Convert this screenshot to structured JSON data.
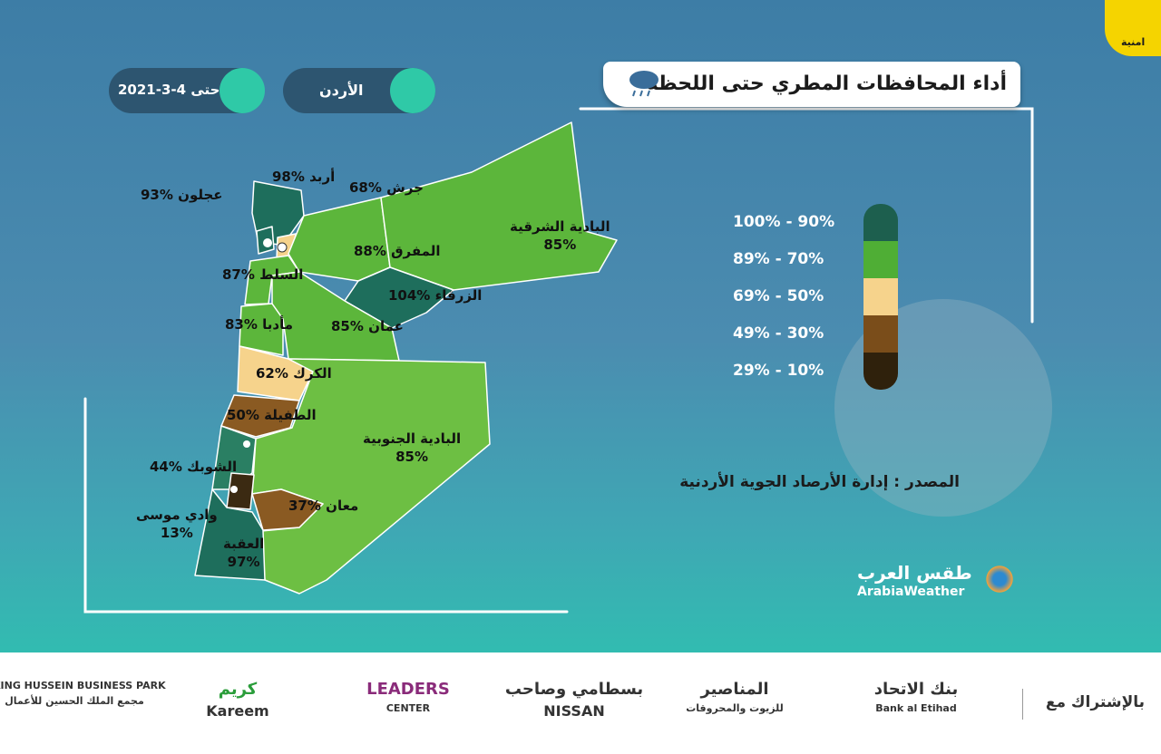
{
  "brand": "امنية",
  "header": {
    "title": "أداء المحافظات المطري حتى اللحظة",
    "location": "الأردن",
    "date_prefix": "حتى",
    "date": "2021-3-4"
  },
  "regions": [
    {
      "name": "أربد",
      "value_label": "98%",
      "color": "#1e6e5c"
    },
    {
      "name": "عجلون",
      "value_label": "93%",
      "color": "#1e6e5c"
    },
    {
      "name": "جرش",
      "value_label": "68%",
      "color": "#f6d38c"
    },
    {
      "name": "المفرق",
      "value_label": "88%",
      "color": "#5cb63b"
    },
    {
      "name": "البادية الشرقية",
      "value_label": "85%",
      "color": "#5cb63b"
    },
    {
      "name": "السلط",
      "value_label": "87%",
      "color": "#5cb63b"
    },
    {
      "name": "الزرقاء",
      "value_label": "104%",
      "color": "#1e6e5c"
    },
    {
      "name": "مأدبا",
      "value_label": "83%",
      "color": "#5cb63b"
    },
    {
      "name": "عمان",
      "value_label": "85%",
      "color": "#5cb63b"
    },
    {
      "name": "الكرك",
      "value_label": "62%",
      "color": "#f6d38c"
    },
    {
      "name": "الطفيلة",
      "value_label": "50%",
      "color": "#8a5a22"
    },
    {
      "name": "البادية الجنوبية",
      "value_label": "85%",
      "color": "#6dbf43"
    },
    {
      "name": "الشوبك",
      "value_label": "44%",
      "color": "#2a7f63"
    },
    {
      "name": "وادي موسى",
      "value_label": "13%",
      "color": "#3b2a12"
    },
    {
      "name": "معان",
      "value_label": "37%",
      "color": "#8a5a22"
    },
    {
      "name": "العقبة",
      "value_label": "97%",
      "color": "#1e6e5c"
    }
  ],
  "legend": [
    {
      "label": "100% - 90%",
      "color": "#1d5f4e"
    },
    {
      "label": "89% - 70%",
      "color": "#4fae35"
    },
    {
      "label": "69% - 50%",
      "color": "#f6d38c"
    },
    {
      "label": "49% - 30%",
      "color": "#7a4d1a"
    },
    {
      "label": "29% - 10%",
      "color": "#2f210c"
    }
  ],
  "source": "المصدر : إدارة الأرصاد الجوية الأردنية",
  "weather_brand": {
    "arabic": "طقس العرب",
    "english": "ArabiaWeather"
  },
  "sponsors": {
    "intro": "بالإشتراك مع",
    "items": [
      {
        "name": "بنك الاتحاد",
        "sub": "Bank al Etihad"
      },
      {
        "name": "المناصير",
        "sub": "للزيوت والمحروقات"
      },
      {
        "name": "بسطامي وصاحب",
        "sub": "NISSAN"
      },
      {
        "name": "LEADERS",
        "sub": "CENTER"
      },
      {
        "name": "كريم",
        "sub": "Kareem"
      },
      {
        "name": "KING HUSSEIN BUSINESS PARK",
        "sub": "مجمع الملك الحسين للأعمال"
      }
    ]
  }
}
